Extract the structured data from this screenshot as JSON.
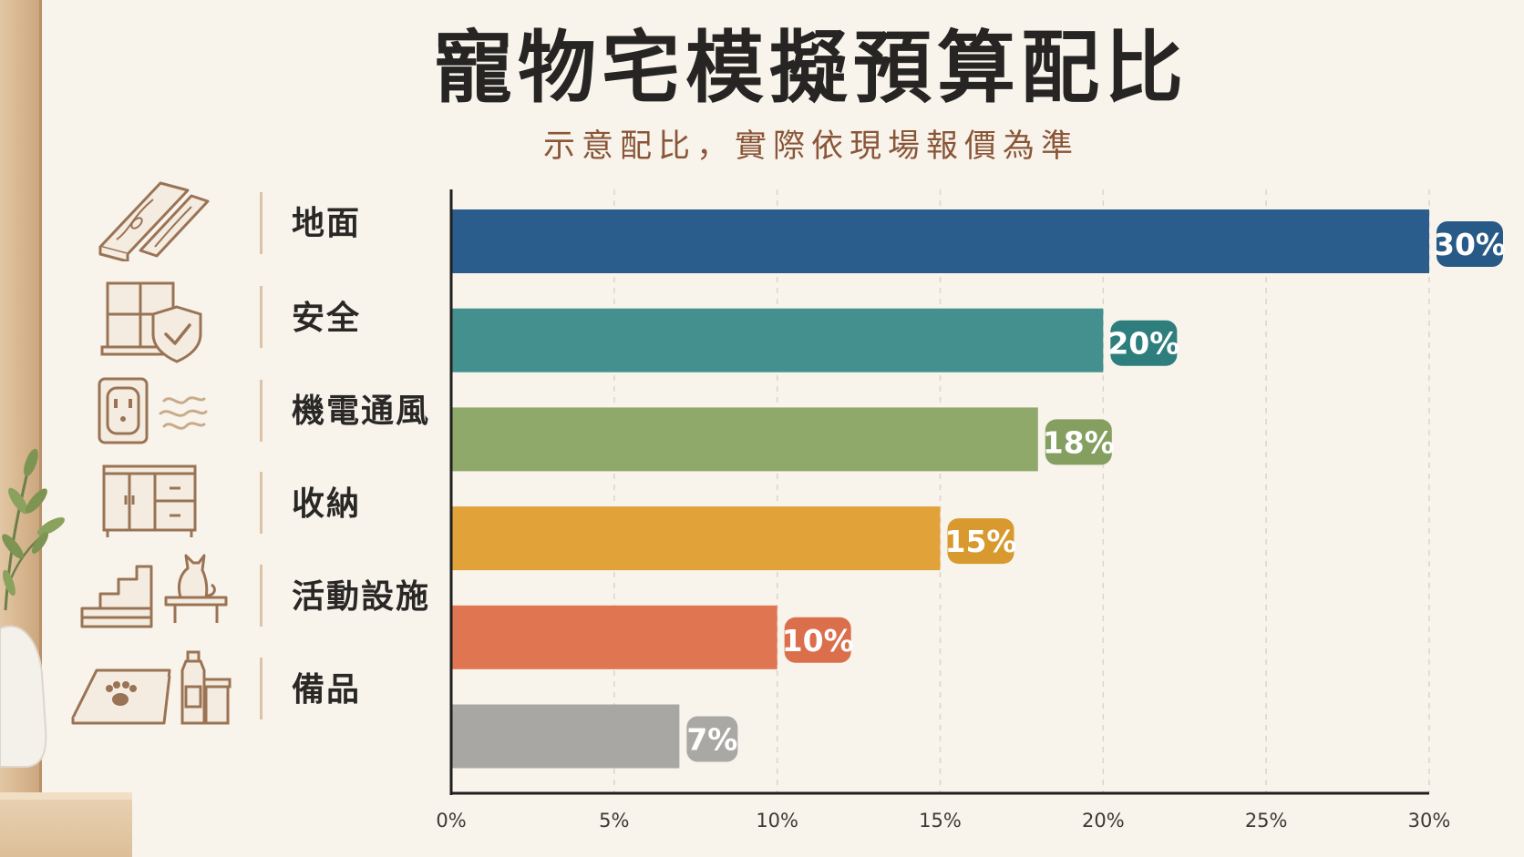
{
  "title": "寵物宅模擬預算配比",
  "subtitle": "示意配比，實際依現場報價為準",
  "colors": {
    "floor": "#2a5d8c",
    "safety": "#43908f",
    "electrical": "#8fa96a",
    "storage": "#e2a23a",
    "activity": "#e07552",
    "supplies": "#a8a7a3",
    "background": "#f8f4ec",
    "icon_stroke": "#9a7355"
  },
  "categories": [
    {
      "label": "地面",
      "icons": [
        "wood-plank-icon"
      ]
    },
    {
      "label": "安全",
      "icons": [
        "window-icon",
        "shield-check-icon"
      ]
    },
    {
      "label": "機電通風",
      "icons": [
        "power-outlet-icon",
        "air-flow-icon"
      ]
    },
    {
      "label": "收納",
      "icons": [
        "cabinet-icon"
      ]
    },
    {
      "label": "活動設施",
      "icons": [
        "pet-stairs-icon",
        "cat-on-shelf-icon"
      ]
    },
    {
      "label": "備品",
      "icons": [
        "paw-mat-icon",
        "bottle-icon",
        "jar-icon"
      ]
    }
  ],
  "chart_data": {
    "type": "bar",
    "orientation": "horizontal",
    "categories": [
      "地面",
      "安全",
      "機電通風",
      "收納",
      "活動設施",
      "備品"
    ],
    "values": [
      30,
      20,
      18,
      15,
      10,
      7
    ],
    "data_labels": [
      "30%",
      "20%",
      "18%",
      "15%",
      "10%",
      "7%"
    ],
    "colors": [
      "#2a5d8c",
      "#43908f",
      "#8fa96a",
      "#e2a23a",
      "#e07552",
      "#a8a7a3"
    ],
    "label_colors": [
      "#275a87",
      "#2f7e7e",
      "#849f5f",
      "#d89a2f",
      "#dc6f4b",
      "#a9a8a4"
    ],
    "xlim": [
      0,
      30
    ],
    "x_ticks": [
      0,
      5,
      10,
      15,
      20,
      25,
      30
    ],
    "x_tick_labels": [
      "0%",
      "5%",
      "10%",
      "15%",
      "20%",
      "25%",
      "30%"
    ],
    "grid": "vertical-dashed",
    "legend": "none"
  }
}
